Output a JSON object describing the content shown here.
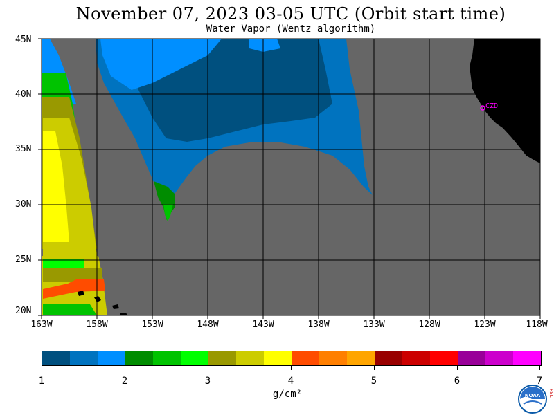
{
  "title": "November 07, 2023  03-05 UTC  (Orbit start time)",
  "subtitle": "Water Vapor (Wentz algorithm)",
  "map": {
    "lat_labels": [
      "45N",
      "40N",
      "35N",
      "30N",
      "25N",
      "20N"
    ],
    "lon_labels": [
      "163W",
      "158W",
      "153W",
      "148W",
      "143W",
      "138W",
      "133W",
      "128W",
      "123W",
      "118W"
    ],
    "station_label": "CZD",
    "colors": {
      "no_data": "#666666",
      "land": "#000000",
      "grid": "#000000",
      "station": "#ff00ff"
    }
  },
  "colorbar": {
    "tick_labels": [
      "1",
      "2",
      "3",
      "4",
      "5",
      "6",
      "7"
    ],
    "unit": "g/cm²",
    "colors": [
      "#00507f",
      "#0073bf",
      "#008fff",
      "#008c00",
      "#00c300",
      "#00ff00",
      "#999900",
      "#cccc00",
      "#ffff00",
      "#ff4c00",
      "#ff7f00",
      "#ffa500",
      "#990000",
      "#cc0000",
      "#ff0000",
      "#990099",
      "#cc00cc",
      "#ff00ff"
    ]
  },
  "logo": {
    "text": "NOAA",
    "side_text": "PSL"
  }
}
